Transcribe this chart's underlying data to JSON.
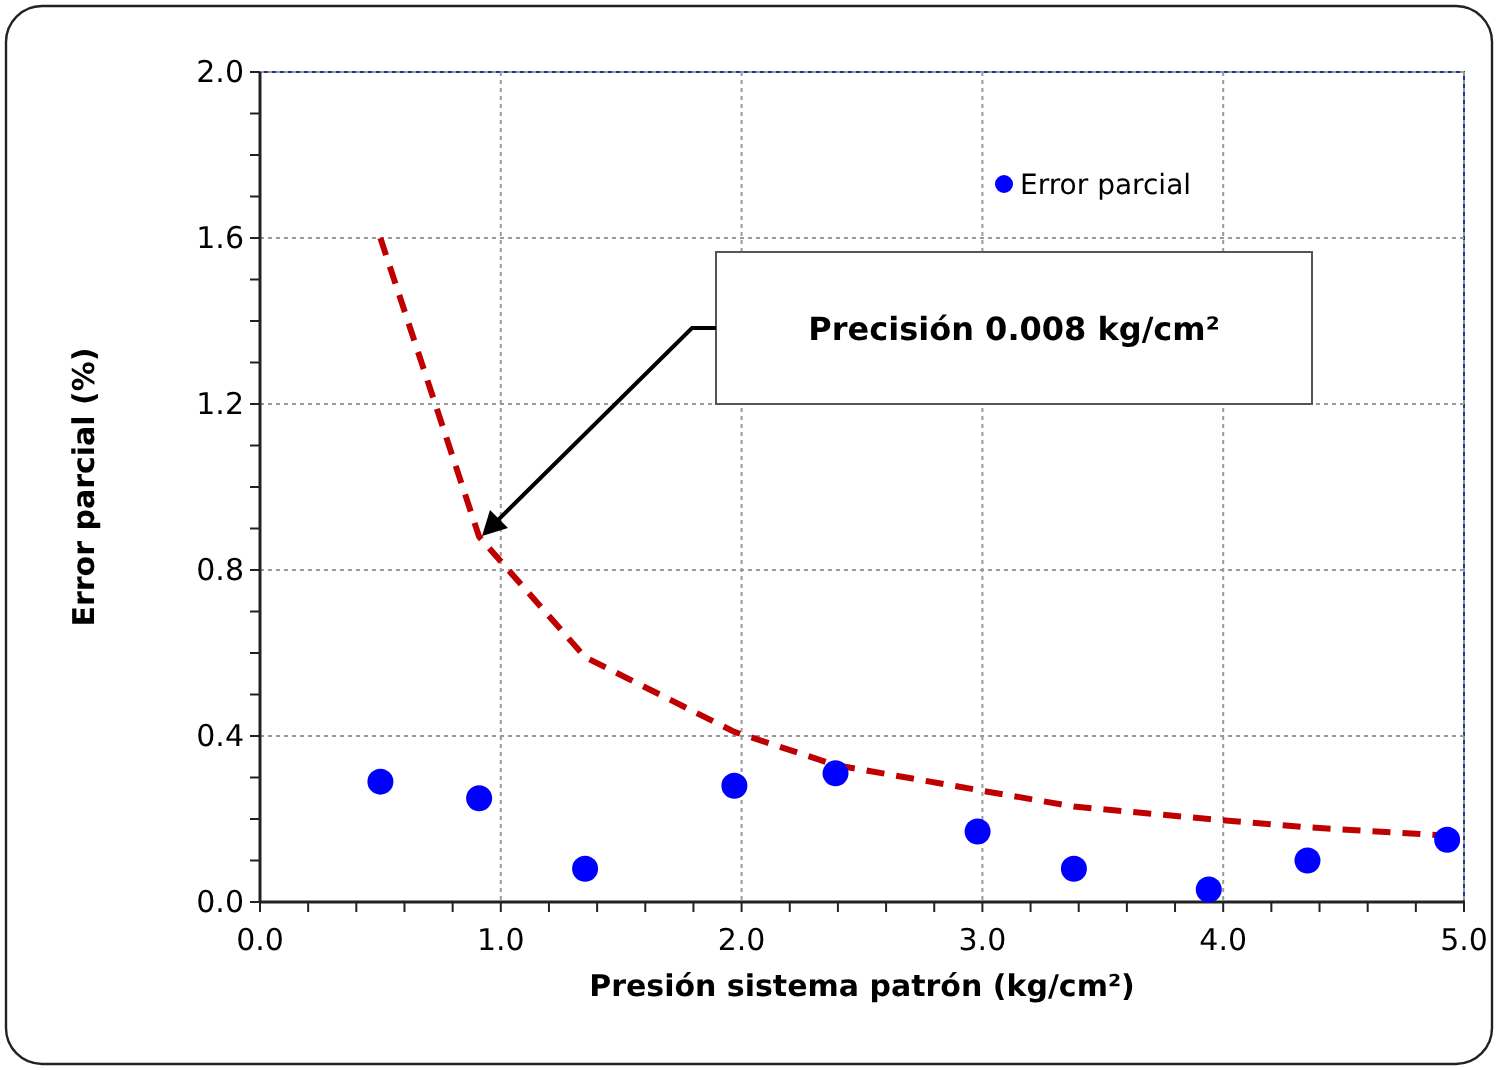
{
  "chart_data": {
    "type": "scatter",
    "xlabel": "Presión sistema patrón (kg/cm²)",
    "ylabel": "Error parcial (%)",
    "xlim": [
      0,
      5
    ],
    "ylim": [
      0,
      2
    ],
    "xticks": [
      {
        "value": 0,
        "label": "0.0"
      },
      {
        "value": 0.2,
        "label": null
      },
      {
        "value": 0.4,
        "label": null
      },
      {
        "value": 0.6,
        "label": null
      },
      {
        "value": 0.8,
        "label": null
      },
      {
        "value": 1,
        "label": "1.0"
      },
      {
        "value": 1.2,
        "label": null
      },
      {
        "value": 1.4,
        "label": null
      },
      {
        "value": 1.6,
        "label": null
      },
      {
        "value": 1.8,
        "label": null
      },
      {
        "value": 2,
        "label": "2.0"
      },
      {
        "value": 2.2,
        "label": null
      },
      {
        "value": 2.4,
        "label": null
      },
      {
        "value": 2.6,
        "label": null
      },
      {
        "value": 2.8,
        "label": null
      },
      {
        "value": 3,
        "label": "3.0"
      },
      {
        "value": 3.2,
        "label": null
      },
      {
        "value": 3.4,
        "label": null
      },
      {
        "value": 3.6,
        "label": null
      },
      {
        "value": 3.8,
        "label": null
      },
      {
        "value": 4,
        "label": "4.0"
      },
      {
        "value": 4.2,
        "label": null
      },
      {
        "value": 4.4,
        "label": null
      },
      {
        "value": 4.6,
        "label": null
      },
      {
        "value": 4.8,
        "label": null
      },
      {
        "value": 5,
        "label": "5.0"
      }
    ],
    "yticks": [
      {
        "value": 0,
        "label": "0.0"
      },
      {
        "value": 0.1,
        "label": null
      },
      {
        "value": 0.2,
        "label": null
      },
      {
        "value": 0.3,
        "label": null
      },
      {
        "value": 0.4,
        "label": "0.4"
      },
      {
        "value": 0.5,
        "label": null
      },
      {
        "value": 0.6,
        "label": null
      },
      {
        "value": 0.7,
        "label": null
      },
      {
        "value": 0.8,
        "label": "0.8"
      },
      {
        "value": 0.9,
        "label": null
      },
      {
        "value": 1,
        "label": null
      },
      {
        "value": 1.1,
        "label": null
      },
      {
        "value": 1.2,
        "label": "1.2"
      },
      {
        "value": 1.3,
        "label": null
      },
      {
        "value": 1.4,
        "label": null
      },
      {
        "value": 1.5,
        "label": null
      },
      {
        "value": 1.6,
        "label": "1.6"
      },
      {
        "value": 1.7,
        "label": null
      },
      {
        "value": 1.8,
        "label": null
      },
      {
        "value": 1.9,
        "label": null
      },
      {
        "value": 2,
        "label": "2.0"
      }
    ],
    "grid": true,
    "legend": "top right",
    "series": [
      {
        "type": "scatter",
        "name": "Error parcial",
        "color": "#0000ff",
        "marker": "circle",
        "x": [
          0.5,
          0.91,
          1.35,
          1.97,
          2.39,
          2.98,
          3.38,
          3.94,
          4.35,
          4.93
        ],
        "values": [
          0.29,
          0.25,
          0.08,
          0.28,
          0.31,
          0.17,
          0.08,
          0.03,
          0.1,
          0.15
        ]
      },
      {
        "type": "line",
        "color": "#c00000",
        "marker": "none",
        "line_style": "dashed",
        "x": [
          0.5,
          0.91,
          1.35,
          1.97,
          2.39,
          2.98,
          3.38,
          3.94,
          4.35,
          4.93
        ],
        "values": [
          1.6,
          0.88,
          0.59,
          0.41,
          0.33,
          0.27,
          0.23,
          0.2,
          0.18,
          0.16
        ]
      }
    ],
    "annotations": [
      "Precisión 0.008 kg/cm²"
    ]
  }
}
